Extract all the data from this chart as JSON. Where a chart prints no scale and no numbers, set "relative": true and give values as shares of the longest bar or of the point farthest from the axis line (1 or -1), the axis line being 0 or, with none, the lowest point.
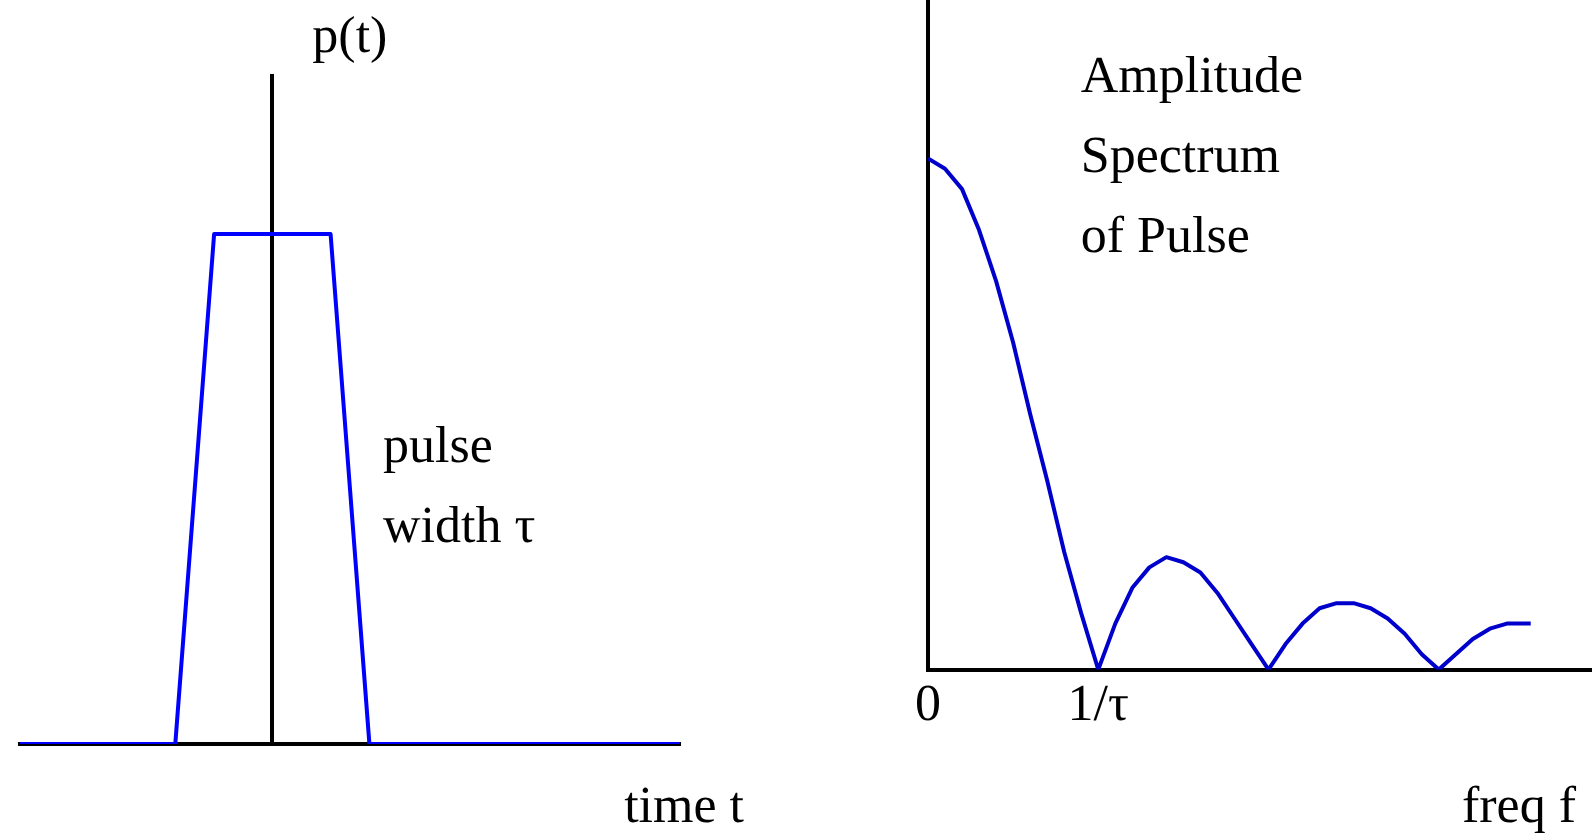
{
  "chart_data": [
    {
      "type": "line",
      "relative": true,
      "ylabel": "p(t)",
      "xlabel": "time t",
      "annotations": [
        "pulse width τ"
      ],
      "tick_labels": false,
      "categories": [
        null,
        null,
        null,
        null,
        null,
        null,
        null,
        null,
        null,
        null,
        null,
        null,
        null,
        null,
        null,
        null,
        null,
        null,
        null,
        null,
        null,
        null,
        null,
        null,
        null,
        null,
        null,
        null,
        null,
        null,
        null,
        null,
        null,
        null,
        null
      ],
      "series": [
        {
          "color": "#0000ff",
          "values": [
            0,
            0,
            0,
            0,
            0,
            0,
            0,
            0,
            0,
            0.5,
            1,
            1,
            1,
            1,
            1,
            1,
            1,
            0.5,
            0,
            0,
            0,
            0,
            0,
            0,
            0,
            0,
            0,
            0,
            0,
            0,
            0,
            0,
            0,
            0,
            0
          ]
        }
      ],
      "marker": "none",
      "grid": false,
      "legend": false
    },
    {
      "type": "line",
      "relative": true,
      "xlabel": "freq f",
      "annotations": [
        "Amplitude Spectrum of Pulse"
      ],
      "tick_labels": "x",
      "xlim": [
        0,
        3.9
      ],
      "xticks": [
        0,
        {
          "value": 1,
          "label": "1/τ"
        }
      ],
      "x": [
        0,
        0.1,
        0.2,
        0.3,
        0.4,
        0.5,
        0.6,
        0.7,
        0.8,
        0.9,
        1,
        1.1,
        1.2,
        1.3,
        1.4,
        1.5,
        1.6,
        1.7,
        1.8,
        1.9,
        2,
        2.1,
        2.2,
        2.3,
        2.4,
        2.5,
        2.6,
        2.7,
        2.8,
        2.9,
        3,
        3.1,
        3.2,
        3.3,
        3.4,
        3.54
      ],
      "series": [
        {
          "color": "#0000cc",
          "values": [
            1,
            0.98,
            0.94,
            0.86,
            0.76,
            0.64,
            0.5,
            0.37,
            0.23,
            0.11,
            0,
            0.09,
            0.16,
            0.2,
            0.22,
            0.21,
            0.19,
            0.15,
            0.1,
            0.05,
            0,
            0.05,
            0.09,
            0.12,
            0.13,
            0.13,
            0.12,
            0.1,
            0.07,
            0.03,
            0,
            0.03,
            0.06,
            0.08,
            0.09,
            0.09
          ]
        }
      ],
      "marker": "none",
      "grid": false,
      "legend": false
    }
  ]
}
